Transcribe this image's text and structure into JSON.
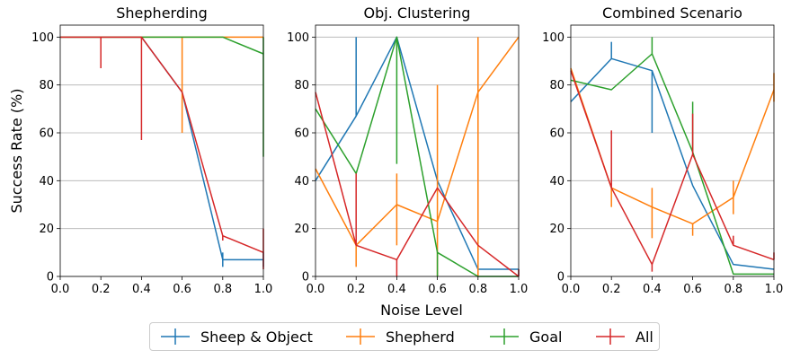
{
  "chart_data": {
    "type": "line",
    "ylabel": "Success Rate (%)",
    "xlabel": "Noise Level",
    "legend_position": "bottom-center",
    "series_colors": {
      "Sheep & Object": "#1f77b4",
      "Shepherd": "#ff7f0e",
      "Goal": "#2ca02c",
      "All": "#d62728"
    },
    "legend": [
      {
        "label": "Sheep & Object",
        "color": "#1f77b4"
      },
      {
        "label": "Shepherd",
        "color": "#ff7f0e"
      },
      {
        "label": "Goal",
        "color": "#2ca02c"
      },
      {
        "label": "All",
        "color": "#d62728"
      }
    ],
    "panels": [
      {
        "title": "Shepherding",
        "x": [
          0.0,
          0.2,
          0.4,
          0.6,
          0.8,
          1.0
        ],
        "xlim": [
          0.0,
          1.0
        ],
        "ylim": [
          0,
          105
        ],
        "xticks": [
          "0.0",
          "0.2",
          "0.4",
          "0.6",
          "0.8",
          "1.0"
        ],
        "yticks": [
          "0",
          "20",
          "40",
          "60",
          "80",
          "100"
        ],
        "grid": "horizontal",
        "series": [
          {
            "name": "Sheep & Object",
            "values": [
              100,
              100,
              100,
              77,
              7,
              7
            ],
            "err_lo": [
              0,
              0,
              0,
              0,
              3,
              3
            ],
            "err_hi": [
              0,
              0,
              0,
              0,
              3,
              3
            ]
          },
          {
            "name": "Shepherd",
            "values": [
              100,
              100,
              100,
              100,
              100,
              100
            ],
            "err_lo": [
              0,
              0,
              0,
              40,
              0,
              0
            ],
            "err_hi": [
              0,
              0,
              0,
              0,
              0,
              0
            ]
          },
          {
            "name": "Goal",
            "values": [
              100,
              100,
              100,
              100,
              100,
              93
            ],
            "err_lo": [
              0,
              0,
              0,
              0,
              0,
              43
            ],
            "err_hi": [
              0,
              0,
              0,
              0,
              0,
              7
            ]
          },
          {
            "name": "All",
            "values": [
              100,
              100,
              100,
              77,
              17,
              10
            ],
            "err_lo": [
              0,
              13,
              43,
              0,
              2,
              7
            ],
            "err_hi": [
              0,
              0,
              0,
              0,
              0,
              10
            ]
          }
        ]
      },
      {
        "title": "Obj. Clustering",
        "x": [
          0.0,
          0.2,
          0.4,
          0.6,
          0.8,
          1.0
        ],
        "xlim": [
          0.0,
          1.0
        ],
        "ylim": [
          0,
          105
        ],
        "xticks": [
          "0.0",
          "0.2",
          "0.4",
          "0.6",
          "0.8",
          "1.0"
        ],
        "yticks": [
          "0",
          "20",
          "40",
          "60",
          "80",
          "100"
        ],
        "grid": "horizontal",
        "series": [
          {
            "name": "Sheep & Object",
            "values": [
              40,
              67,
              100,
              40,
              3,
              3
            ],
            "err_lo": [
              0,
              0,
              0,
              0,
              0,
              3
            ],
            "err_hi": [
              0,
              33,
              0,
              0,
              0,
              0
            ]
          },
          {
            "name": "Shepherd",
            "values": [
              45,
              13,
              30,
              23,
              77,
              100
            ],
            "err_lo": [
              0,
              9,
              17,
              23,
              77,
              0
            ],
            "err_hi": [
              0,
              0,
              13,
              57,
              23,
              0
            ]
          },
          {
            "name": "Goal",
            "values": [
              70,
              43,
              100,
              10,
              0,
              0
            ],
            "err_lo": [
              0,
              0,
              53,
              10,
              0,
              0
            ],
            "err_hi": [
              0,
              0,
              0,
              0,
              0,
              0
            ]
          },
          {
            "name": "All",
            "values": [
              77,
              13,
              7,
              37,
              13,
              0
            ],
            "err_lo": [
              0,
              0,
              7,
              0,
              0,
              0
            ],
            "err_hi": [
              0,
              30,
              0,
              0,
              0,
              3
            ]
          }
        ]
      },
      {
        "title": "Combined Scenario",
        "x": [
          0.0,
          0.2,
          0.4,
          0.6,
          0.8,
          1.0
        ],
        "xlim": [
          0.0,
          1.0
        ],
        "ylim": [
          0,
          105
        ],
        "xticks": [
          "0.0",
          "0.2",
          "0.4",
          "0.6",
          "0.8",
          "1.0"
        ],
        "yticks": [
          "0",
          "20",
          "40",
          "60",
          "80",
          "100"
        ],
        "grid": "horizontal",
        "series": [
          {
            "name": "Sheep & Object",
            "values": [
              73,
              91,
              86,
              38,
              5,
              3
            ],
            "err_lo": [
              0,
              0,
              26,
              0,
              0,
              0
            ],
            "err_hi": [
              0,
              7,
              0,
              0,
              0,
              0
            ]
          },
          {
            "name": "Shepherd",
            "values": [
              87,
              37,
              29,
              22,
              33,
              78
            ],
            "err_lo": [
              0,
              8,
              13,
              5,
              7,
              5
            ],
            "err_hi": [
              0,
              0,
              8,
              0,
              7,
              7
            ]
          },
          {
            "name": "Goal",
            "values": [
              82,
              78,
              93,
              52,
              1,
              1
            ],
            "err_lo": [
              0,
              0,
              0,
              0,
              0,
              0
            ],
            "err_hi": [
              0,
              0,
              7,
              21,
              0,
              0
            ]
          },
          {
            "name": "All",
            "values": [
              86,
              37,
              5,
              51,
              13,
              7
            ],
            "err_lo": [
              0,
              0,
              3,
              0,
              0,
              0
            ],
            "err_hi": [
              0,
              24,
              0,
              17,
              4,
              3
            ]
          }
        ]
      }
    ]
  }
}
